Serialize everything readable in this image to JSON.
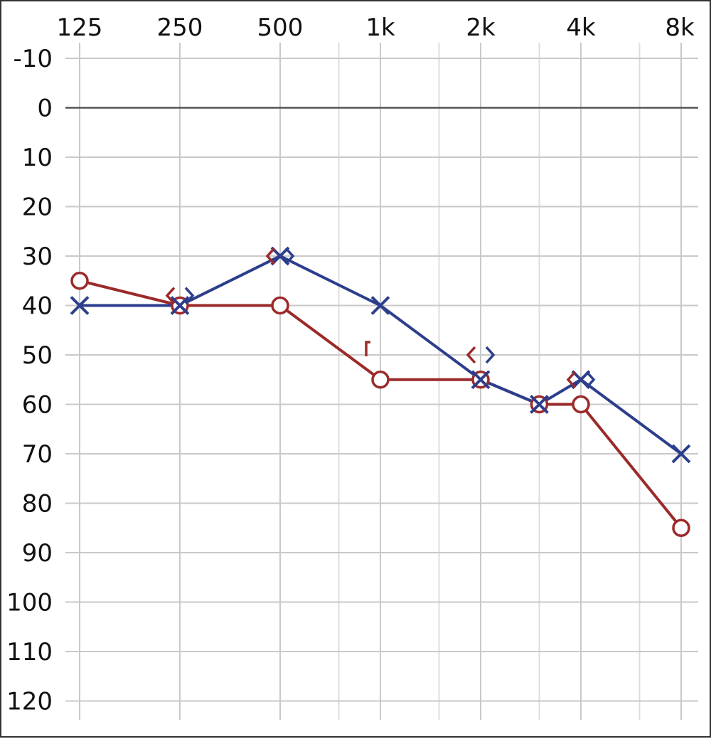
{
  "chart_data": {
    "type": "line",
    "title": "",
    "xlabel": "",
    "ylabel": "",
    "x_scale": "log",
    "y_inverted": true,
    "grid": true,
    "x_ticks": [
      "125",
      "250",
      "500",
      "1k",
      "2k",
      "4k",
      "8k"
    ],
    "y_ticks": [
      "-10",
      "0",
      "10",
      "20",
      "30",
      "40",
      "50",
      "60",
      "70",
      "80",
      "90",
      "100",
      "110",
      "120"
    ],
    "ylim": [
      -10,
      120
    ],
    "xlim_hz": [
      125,
      8000
    ],
    "series": [
      {
        "marker": "circle",
        "color": "#9b2a2a",
        "points": [
          {
            "x": 125,
            "y": 35
          },
          {
            "x": 250,
            "y": 40
          },
          {
            "x": 500,
            "y": 40
          },
          {
            "x": 1000,
            "y": 55
          },
          {
            "x": 2000,
            "y": 55
          },
          {
            "x": 3000,
            "y": 60
          },
          {
            "x": 4000,
            "y": 60
          },
          {
            "x": 8000,
            "y": 85
          }
        ]
      },
      {
        "marker": "x",
        "color": "#2c3e8c",
        "points": [
          {
            "x": 125,
            "y": 40
          },
          {
            "x": 250,
            "y": 40
          },
          {
            "x": 500,
            "y": 30
          },
          {
            "x": 1000,
            "y": 40
          },
          {
            "x": 2000,
            "y": 55
          },
          {
            "x": 3000,
            "y": 60
          },
          {
            "x": 4000,
            "y": 55
          },
          {
            "x": 8000,
            "y": 70
          }
        ]
      }
    ],
    "bone_conduction_marks": [
      {
        "symbol": "<",
        "color": "#9b2a2a",
        "x": 250,
        "y": 38
      },
      {
        "symbol": ">",
        "color": "#2c3e8c",
        "x": 250,
        "y": 38
      },
      {
        "symbol": "<",
        "color": "#9b2a2a",
        "x": 500,
        "y": 30
      },
      {
        "symbol": ">",
        "color": "#2c3e8c",
        "x": 500,
        "y": 30
      },
      {
        "symbol": "<",
        "color": "#9b2a2a",
        "x": 2000,
        "y": 50
      },
      {
        "symbol": ">",
        "color": "#2c3e8c",
        "x": 2000,
        "y": 50
      },
      {
        "symbol": "<",
        "color": "#9b2a2a",
        "x": 4000,
        "y": 55
      },
      {
        "symbol": ">",
        "color": "#2c3e8c",
        "x": 4000,
        "y": 55
      },
      {
        "symbol": "[",
        "color": "#9b2a2a",
        "x": 1000,
        "y": 50
      }
    ]
  }
}
